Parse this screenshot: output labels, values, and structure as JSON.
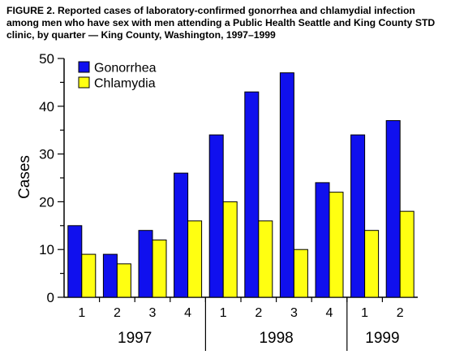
{
  "figure": {
    "title": "FIGURE 2. Reported cases of laboratory-confirmed gonorrhea and chlamydial infection among men who have sex with men attending a Public Health Seattle and King County STD clinic, by quarter — King County, Washington, 1997–1999"
  },
  "colors": {
    "gonorrhea": "#1010ee",
    "chlamydia": "#ffff11",
    "stroke": "#000000"
  },
  "chart_data": {
    "type": "bar",
    "title": "FIGURE 2. Reported cases of laboratory-confirmed gonorrhea and chlamydial infection among men who have sex with men attending a Public Health Seattle and King County STD clinic, by quarter — King County, Washington, 1997–1999",
    "xlabel": "",
    "ylabel": "Cases",
    "ylim": [
      0,
      50
    ],
    "yticks": [
      0,
      10,
      20,
      30,
      40,
      50
    ],
    "grid": false,
    "legend_position": "top-left",
    "categories": [
      "1",
      "2",
      "3",
      "4",
      "1",
      "2",
      "3",
      "4",
      "1",
      "2"
    ],
    "groups": [
      {
        "label": "1997",
        "count": 4
      },
      {
        "label": "1998",
        "count": 4
      },
      {
        "label": "1999",
        "count": 2
      }
    ],
    "series": [
      {
        "name": "Gonorrhea",
        "values": [
          15,
          9,
          14,
          26,
          34,
          43,
          47,
          24,
          34,
          37
        ]
      },
      {
        "name": "Chlamydia",
        "values": [
          9,
          7,
          12,
          16,
          20,
          16,
          10,
          22,
          14,
          18
        ]
      }
    ]
  }
}
